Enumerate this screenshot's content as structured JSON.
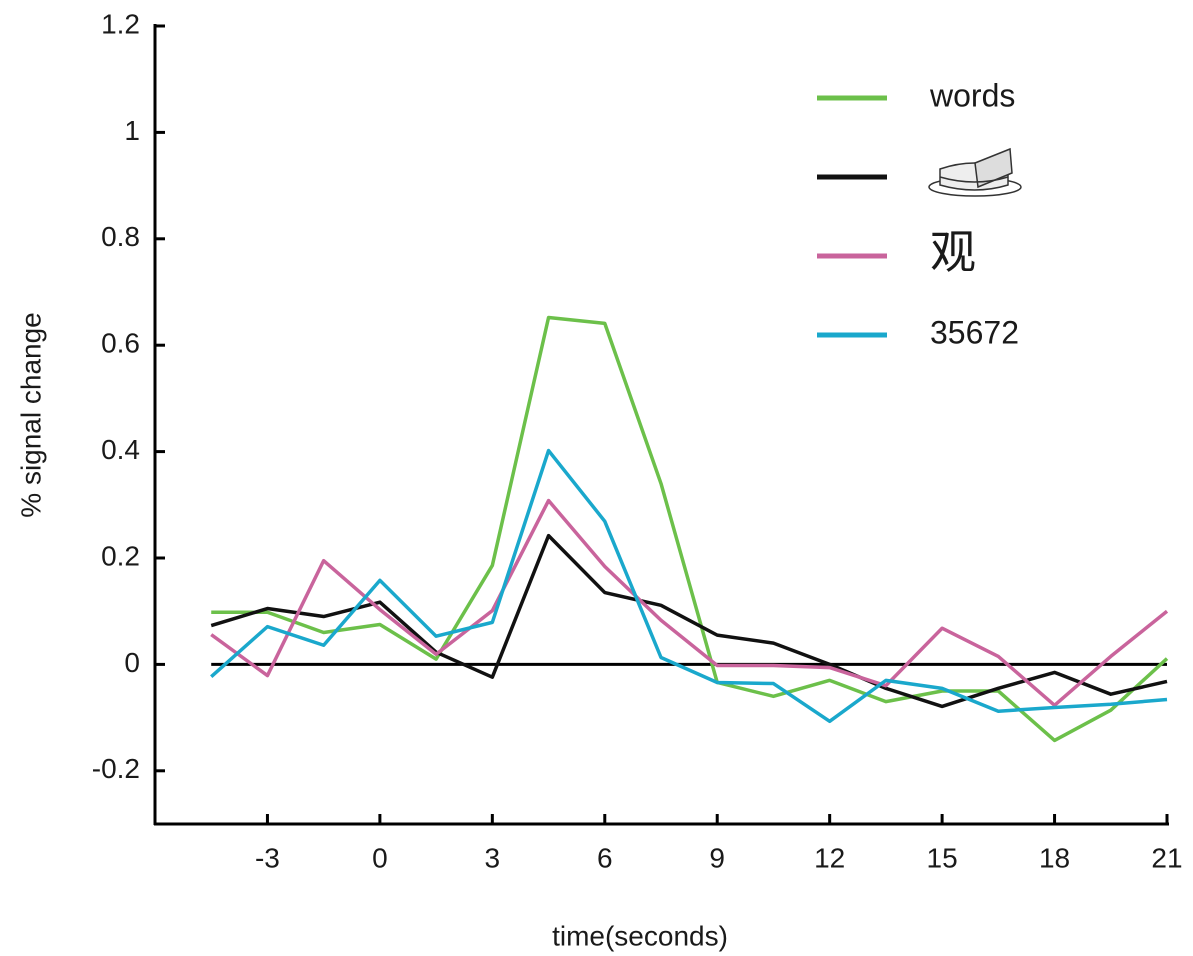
{
  "chart_data": {
    "type": "line",
    "xlabel": "time(seconds)",
    "ylabel": "% signal change",
    "x": [
      -4.5,
      -3,
      -1.5,
      0,
      1.5,
      3,
      4.5,
      6,
      7.5,
      9,
      10.5,
      12,
      13.5,
      15,
      16.5,
      18,
      19.5,
      21
    ],
    "series": [
      {
        "name": "words",
        "color": "#6cc04a",
        "values": [
          0.098,
          0.098,
          0.06,
          0.075,
          0.01,
          0.186,
          0.652,
          0.641,
          0.34,
          -0.034,
          -0.06,
          -0.03,
          -0.07,
          -0.05,
          -0.05,
          -0.143,
          -0.086,
          0.011
        ]
      },
      {
        "name": null,
        "color": "#111111",
        "values": [
          0.073,
          0.105,
          0.09,
          0.117,
          0.023,
          -0.024,
          0.242,
          0.135,
          0.111,
          0.055,
          0.04,
          0,
          -0.045,
          -0.079,
          -0.045,
          -0.015,
          -0.056,
          -0.032
        ]
      },
      {
        "name": "观",
        "color": "#c9649c",
        "values": [
          0.056,
          -0.021,
          0.195,
          0.103,
          0.019,
          0.101,
          0.308,
          0.184,
          0.083,
          -0.002,
          -0.002,
          -0.006,
          -0.04,
          0.068,
          0.015,
          -0.077,
          0.015,
          0.1
        ]
      },
      {
        "name": "35672",
        "color": "#1aa8cc",
        "values": [
          -0.023,
          0.071,
          0.036,
          0.158,
          0.053,
          0.079,
          0.402,
          0.269,
          0.013,
          -0.034,
          -0.036,
          -0.107,
          -0.03,
          -0.045,
          -0.088,
          -0.081,
          -0.075,
          -0.066
        ]
      }
    ],
    "reference_line": 0,
    "xlim": [
      -6,
      21
    ],
    "xticks": [
      -3,
      0,
      3,
      6,
      9,
      12,
      15,
      18,
      21
    ],
    "ylim": [
      -0.3,
      1.2
    ],
    "yticks": [
      -0.2,
      0,
      0.2,
      0.4,
      0.6,
      0.8,
      1,
      1.2
    ],
    "legend": "upper right"
  }
}
